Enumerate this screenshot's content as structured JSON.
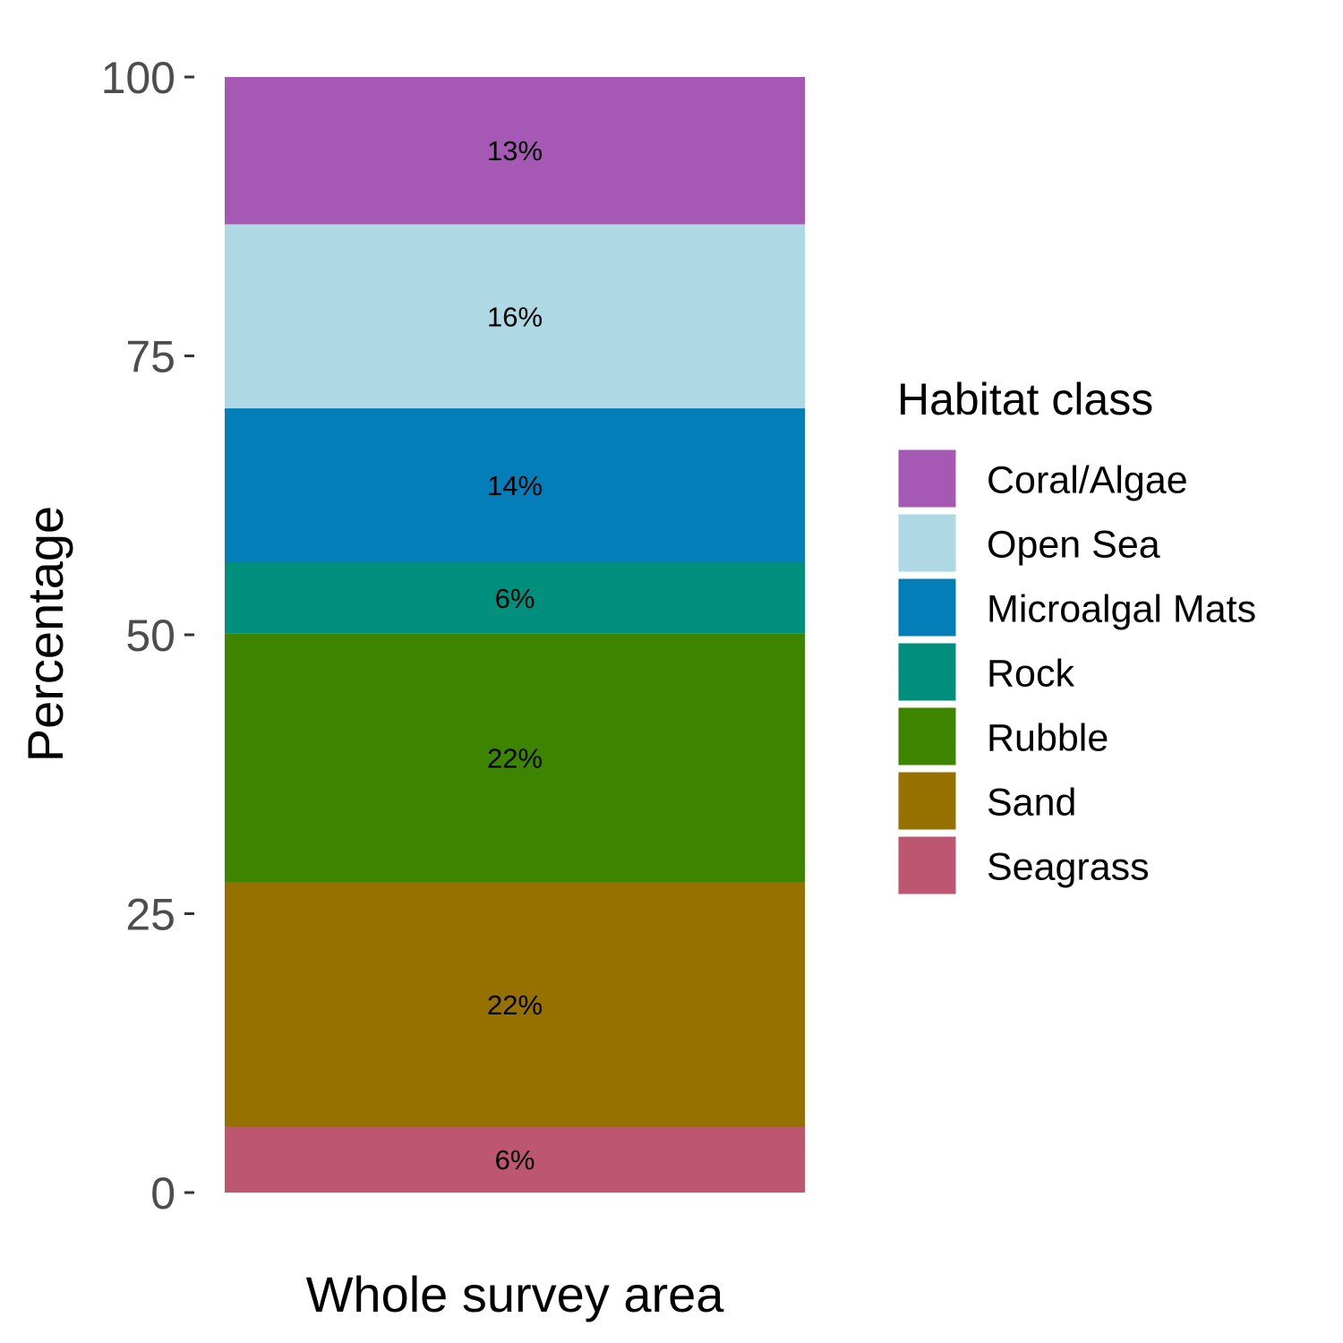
{
  "chart_data": {
    "type": "bar",
    "stacked": true,
    "categories": [
      "Whole survey area"
    ],
    "xlabel": "Whole survey area",
    "ylabel": "Percentage",
    "ylim": [
      0,
      100
    ],
    "yticks": [
      "0",
      "25",
      "50",
      "75",
      "100"
    ],
    "grid": false,
    "legend": {
      "title": "Habitat class",
      "position": "right"
    },
    "series": [
      {
        "name": "Coral/Algae",
        "values": [
          13.2
        ],
        "label": "13%",
        "color": "#a659b4"
      },
      {
        "name": "Open Sea",
        "values": [
          16.5
        ],
        "label": "16%",
        "color": "#afd8e5"
      },
      {
        "name": "Microalgal Mats",
        "values": [
          13.8
        ],
        "label": "14%",
        "color": "#037eb9"
      },
      {
        "name": "Rock",
        "values": [
          6.4
        ],
        "label": "6%",
        "color": "#008f7c"
      },
      {
        "name": "Rubble",
        "values": [
          22.3
        ],
        "label": "22%",
        "color": "#3d8400"
      },
      {
        "name": "Sand",
        "values": [
          21.9
        ],
        "label": "22%",
        "color": "#967100"
      },
      {
        "name": "Seagrass",
        "values": [
          5.9
        ],
        "label": "6%",
        "color": "#bd5670"
      }
    ]
  }
}
